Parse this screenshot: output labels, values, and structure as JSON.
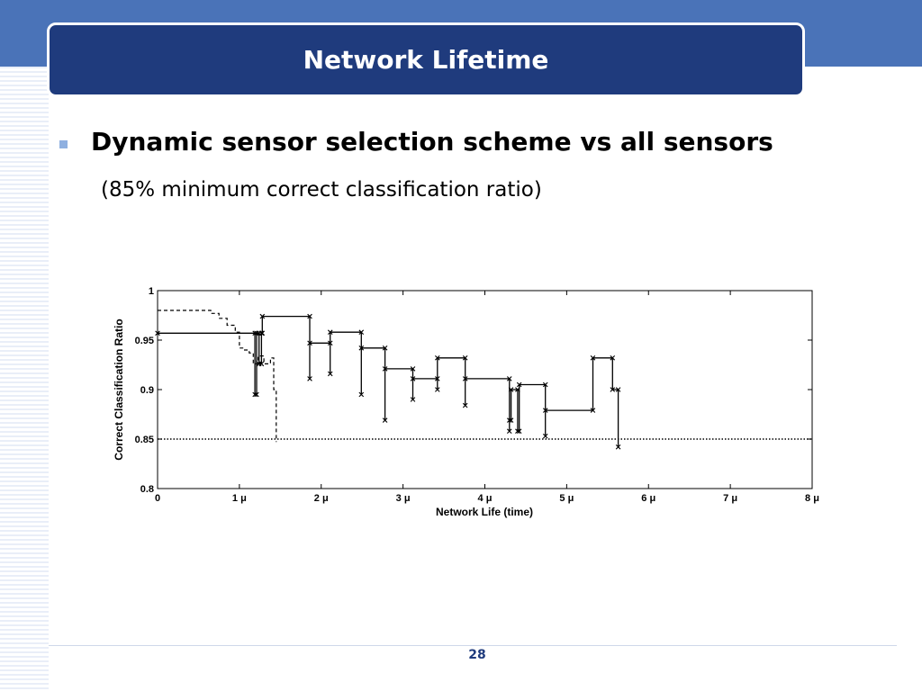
{
  "slide": {
    "title": "Network Lifetime",
    "bullet": "Dynamic sensor selection scheme vs all sensors",
    "subtext": "(85% minimum correct classification ratio)",
    "page_number": "28"
  },
  "colors": {
    "header_band": "#4a73b8",
    "title_box": "#1f3b7d",
    "bullet": "#8fb0e0"
  },
  "chart_data": {
    "type": "line",
    "xlabel": "Network Life (time)",
    "ylabel": "Correct Classification Ratio",
    "xlim": [
      0,
      8
    ],
    "ylim": [
      0.8,
      1.0
    ],
    "x_ticks": [
      0,
      1,
      2,
      3,
      4,
      5,
      6,
      7,
      8
    ],
    "x_tick_labels": [
      "0",
      "1 μ",
      "2 μ",
      "3 μ",
      "4 μ",
      "5 μ",
      "6 μ",
      "7 μ",
      "8 μ"
    ],
    "y_ticks": [
      0.8,
      0.85,
      0.9,
      0.95,
      1.0
    ],
    "y_tick_labels": [
      "0.8",
      "0.85",
      "0.9",
      "0.95",
      "1"
    ],
    "grid": false,
    "series": [
      {
        "style": "solid-x-markers",
        "points": [
          [
            0,
            0.957
          ],
          [
            1.19,
            0.957
          ],
          [
            1.19,
            0.895
          ],
          [
            1.21,
            0.895
          ],
          [
            1.21,
            0.957
          ],
          [
            1.24,
            0.957
          ],
          [
            1.24,
            0.926
          ],
          [
            1.27,
            0.926
          ],
          [
            1.27,
            0.957
          ],
          [
            1.28,
            0.957
          ],
          [
            1.28,
            0.974
          ],
          [
            1.86,
            0.974
          ],
          [
            1.86,
            0.911
          ],
          [
            1.86,
            0.947
          ],
          [
            2.11,
            0.947
          ],
          [
            2.11,
            0.916
          ],
          [
            2.11,
            0.958
          ],
          [
            2.49,
            0.958
          ],
          [
            2.49,
            0.895
          ],
          [
            2.49,
            0.942
          ],
          [
            2.78,
            0.942
          ],
          [
            2.78,
            0.869
          ],
          [
            2.78,
            0.921
          ],
          [
            3.12,
            0.921
          ],
          [
            3.12,
            0.89
          ],
          [
            3.12,
            0.911
          ],
          [
            3.42,
            0.911
          ],
          [
            3.42,
            0.9
          ],
          [
            3.42,
            0.932
          ],
          [
            3.76,
            0.932
          ],
          [
            3.76,
            0.884
          ],
          [
            3.76,
            0.911
          ],
          [
            4.3,
            0.911
          ],
          [
            4.3,
            0.858
          ],
          [
            4.3,
            0.869
          ],
          [
            4.32,
            0.869
          ],
          [
            4.32,
            0.9
          ],
          [
            4.4,
            0.9
          ],
          [
            4.4,
            0.858
          ],
          [
            4.42,
            0.858
          ],
          [
            4.42,
            0.905
          ],
          [
            4.74,
            0.905
          ],
          [
            4.74,
            0.853
          ],
          [
            4.74,
            0.879
          ],
          [
            5.32,
            0.879
          ],
          [
            5.32,
            0.932
          ],
          [
            5.56,
            0.932
          ],
          [
            5.56,
            0.9
          ],
          [
            5.63,
            0.9
          ],
          [
            5.63,
            0.842
          ]
        ]
      },
      {
        "style": "dashed",
        "points": [
          [
            0,
            0.98
          ],
          [
            0.65,
            0.98
          ],
          [
            0.65,
            0.977
          ],
          [
            0.75,
            0.977
          ],
          [
            0.75,
            0.972
          ],
          [
            0.85,
            0.972
          ],
          [
            0.85,
            0.965
          ],
          [
            0.95,
            0.965
          ],
          [
            0.95,
            0.958
          ],
          [
            1.0,
            0.958
          ],
          [
            1.0,
            0.942
          ],
          [
            1.05,
            0.942
          ],
          [
            1.05,
            0.94
          ],
          [
            1.12,
            0.94
          ],
          [
            1.12,
            0.937
          ],
          [
            1.17,
            0.937
          ],
          [
            1.17,
            0.926
          ],
          [
            1.23,
            0.926
          ],
          [
            1.23,
            0.934
          ],
          [
            1.3,
            0.934
          ],
          [
            1.3,
            0.926
          ],
          [
            1.38,
            0.926
          ],
          [
            1.38,
            0.932
          ],
          [
            1.42,
            0.932
          ],
          [
            1.42,
            0.9
          ],
          [
            1.45,
            0.9
          ],
          [
            1.45,
            0.847
          ]
        ]
      },
      {
        "style": "dotted",
        "points": [
          [
            0,
            0.85
          ],
          [
            8,
            0.85
          ]
        ]
      }
    ]
  }
}
